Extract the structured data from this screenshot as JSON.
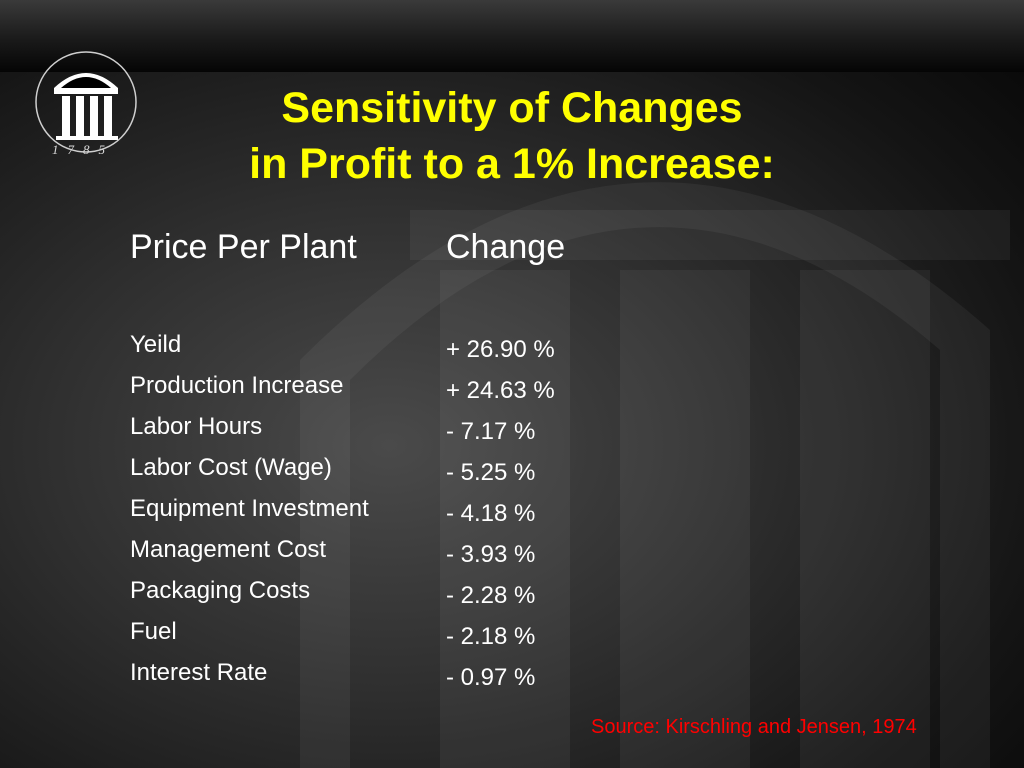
{
  "slide": {
    "title_line1": "Sensitivity of Changes",
    "title_line2": "in Profit to a 1% Increase:",
    "logo_year": "1785",
    "headers": {
      "factor": "Price Per Plant",
      "change": "Change"
    },
    "rows": [
      {
        "factor": "Yeild",
        "change": "+ 26.90 %"
      },
      {
        "factor": "Production Increase",
        "change": "+ 24.63 %"
      },
      {
        "factor": "Labor Hours",
        "change": "- 7.17 %"
      },
      {
        "factor": "Labor Cost (Wage)",
        "change": "- 5.25 %"
      },
      {
        "factor": "Equipment Investment",
        "change": "- 4.18 %"
      },
      {
        "factor": "Management Cost",
        "change": "- 3.93 %"
      },
      {
        "factor": "Packaging Costs",
        "change": "- 2.28 %"
      },
      {
        "factor": "Fuel",
        "change": "- 2.18 %"
      },
      {
        "factor": "Interest Rate",
        "change": "- 0.97 %"
      }
    ],
    "source": "Source: Kirschling and Jensen, 1974"
  },
  "colors": {
    "title": "#ffff00",
    "text": "#ffffff",
    "source": "#ff0000"
  }
}
